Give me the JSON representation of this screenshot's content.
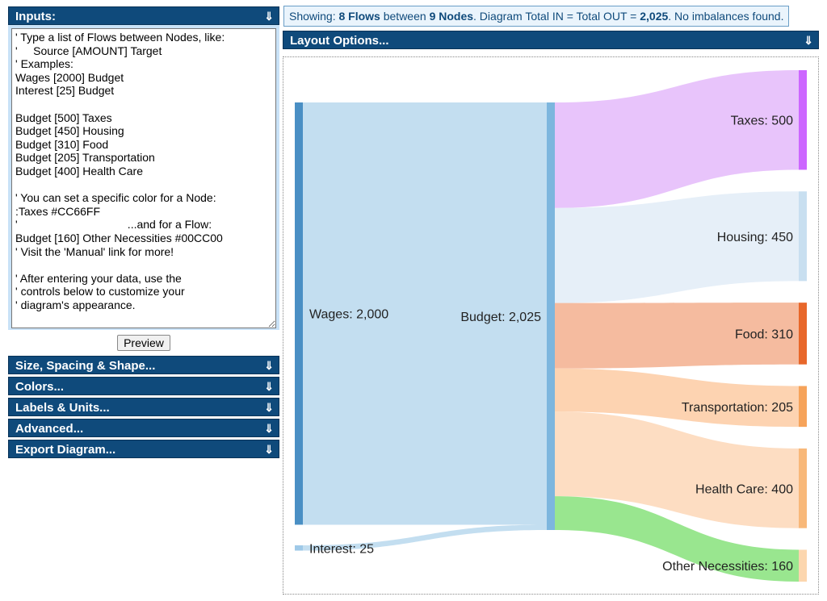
{
  "inputs_panel": {
    "title": "Inputs:",
    "arrow": "⇓",
    "text": "' Type a list of Flows between Nodes, like:\n'     Source [AMOUNT] Target\n' Examples:\nWages [2000] Budget\nInterest [25] Budget\n\nBudget [500] Taxes\nBudget [450] Housing\nBudget [310] Food\nBudget [205] Transportation\nBudget [400] Health Care\n\n' You can set a specific color for a Node:\n:Taxes #CC66FF\n'                                   ...and for a Flow:\nBudget [160] Other Necessities #00CC00\n' Visit the 'Manual' link for more!\n\n' After entering your data, use the\n' controls below to customize your\n' diagram's appearance.",
    "preview_label": "Preview"
  },
  "sections": [
    {
      "label": "Size, Spacing & Shape...",
      "arrow": "⇓"
    },
    {
      "label": "Colors...",
      "arrow": "⇓"
    },
    {
      "label": "Labels & Units...",
      "arrow": "⇓"
    },
    {
      "label": "Advanced...",
      "arrow": "⇓"
    },
    {
      "label": "Export Diagram...",
      "arrow": "⇓"
    }
  ],
  "status": {
    "prefix": "Showing: ",
    "flows": "8 Flows",
    "mid1": " between ",
    "nodes": "9 Nodes",
    "mid2": ". Diagram Total IN = Total OUT = ",
    "total": "2,025",
    "suffix": ". No imbalances found."
  },
  "layout_options": {
    "label": "Layout Options...",
    "arrow": "⇓"
  },
  "diagram": {
    "nodes": [
      {
        "name": "Wages",
        "label": "Wages: 2,000",
        "value": 2000,
        "color": "#4a8fc4"
      },
      {
        "name": "Interest",
        "label": "Interest: 25",
        "value": 25,
        "color": "#9fc9e8"
      },
      {
        "name": "Budget",
        "label": "Budget: 2,025",
        "value": 2025,
        "color": "#7db6de"
      },
      {
        "name": "Taxes",
        "label": "Taxes: 500",
        "value": 500,
        "color": "#CC66FF"
      },
      {
        "name": "Housing",
        "label": "Housing: 450",
        "value": 450,
        "color": "#c8dff0"
      },
      {
        "name": "Food",
        "label": "Food: 310",
        "value": 310,
        "color": "#e8672a"
      },
      {
        "name": "Transportation",
        "label": "Transportation: 205",
        "value": 205,
        "color": "#f6a35a"
      },
      {
        "name": "Health Care",
        "label": "Health Care: 400",
        "value": 400,
        "color": "#f8b879"
      },
      {
        "name": "Other Necessities",
        "label": "Other Necessities: 160",
        "value": 160,
        "color": "#fcd6ae"
      }
    ],
    "flows": [
      {
        "source": "Wages",
        "target": "Budget",
        "value": 2000,
        "color": "#c3def0"
      },
      {
        "source": "Interest",
        "target": "Budget",
        "value": 25,
        "color": "#c3def0"
      },
      {
        "source": "Budget",
        "target": "Taxes",
        "value": 500,
        "color": "#e8c4fb"
      },
      {
        "source": "Budget",
        "target": "Housing",
        "value": 450,
        "color": "#e6eff8"
      },
      {
        "source": "Budget",
        "target": "Food",
        "value": 310,
        "color": "#f5bb9f"
      },
      {
        "source": "Budget",
        "target": "Transportation",
        "value": 205,
        "color": "#fdd3b1"
      },
      {
        "source": "Budget",
        "target": "Health Care",
        "value": 400,
        "color": "#fdddc2"
      },
      {
        "source": "Budget",
        "target": "Other Necessities",
        "value": 160,
        "color": "#99e68f"
      }
    ]
  }
}
